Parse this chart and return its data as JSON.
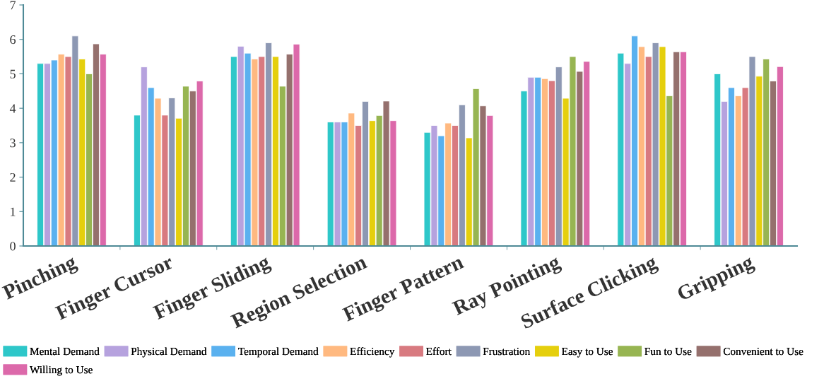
{
  "chart_data": {
    "type": "bar",
    "categories": [
      "Pinching",
      "Finger Cursor",
      "Finger Sliding",
      "Region Selection",
      "Finger Pattern",
      "Ray Pointing",
      "Surface Clicking",
      "Gripping"
    ],
    "series": [
      {
        "name": "Mental Demand",
        "color": "#2ec7c9",
        "values": [
          5.3,
          3.8,
          5.5,
          3.6,
          3.3,
          4.5,
          5.6,
          5.0
        ]
      },
      {
        "name": "Physical Demand",
        "color": "#b6a2de",
        "values": [
          5.3,
          5.2,
          5.8,
          3.6,
          3.5,
          4.9,
          5.3,
          4.2
        ]
      },
      {
        "name": "Temporal Demand",
        "color": "#5ab1ef",
        "values": [
          5.4,
          4.6,
          5.6,
          3.6,
          3.2,
          4.9,
          6.1,
          4.6
        ]
      },
      {
        "name": "Efficiency",
        "color": "#ffb980",
        "values": [
          5.57,
          4.29,
          5.43,
          3.86,
          3.57,
          4.86,
          5.79,
          4.36
        ]
      },
      {
        "name": "Effort",
        "color": "#d87a80",
        "values": [
          5.5,
          3.8,
          5.5,
          3.5,
          3.5,
          4.8,
          5.5,
          4.6
        ]
      },
      {
        "name": "Frustration",
        "color": "#8d98b3",
        "values": [
          6.1,
          4.3,
          5.9,
          4.2,
          4.1,
          5.2,
          5.9,
          5.5
        ]
      },
      {
        "name": "Easy to Use",
        "color": "#e5cf0d",
        "values": [
          5.43,
          3.71,
          5.5,
          3.64,
          3.14,
          4.29,
          5.79,
          4.93
        ]
      },
      {
        "name": "Fun to Use",
        "color": "#97b552",
        "values": [
          5.0,
          4.64,
          4.64,
          3.79,
          4.57,
          5.5,
          4.36,
          5.43
        ]
      },
      {
        "name": "Convenient to Use",
        "color": "#95706d",
        "values": [
          5.87,
          4.5,
          5.57,
          4.21,
          4.07,
          5.07,
          5.64,
          4.79
        ]
      },
      {
        "name": "Willing to Use",
        "color": "#dc69aa",
        "values": [
          5.57,
          4.79,
          5.86,
          3.64,
          3.79,
          5.36,
          5.64,
          5.21
        ]
      }
    ],
    "ylim": [
      0,
      7
    ],
    "yticks": [
      0,
      1,
      2,
      3,
      4,
      5,
      6,
      7
    ],
    "grid": false,
    "legend": "bottom"
  }
}
